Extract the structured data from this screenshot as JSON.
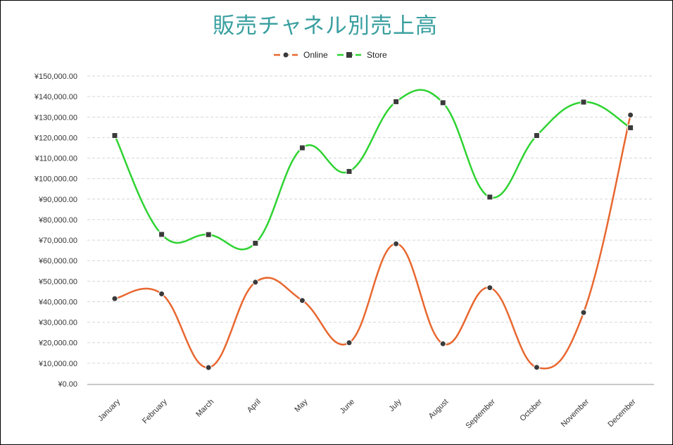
{
  "chart_data": {
    "type": "line",
    "title": "販売チャネル別売上高",
    "xlabel": "",
    "ylabel": "",
    "categories": [
      "January",
      "February",
      "March",
      "April",
      "May",
      "June",
      "July",
      "August",
      "September",
      "October",
      "November",
      "December"
    ],
    "series": [
      {
        "name": "Online",
        "color": "#e8672f",
        "marker": "circle",
        "values": [
          41500,
          43800,
          7900,
          49500,
          40600,
          20000,
          68200,
          19500,
          46800,
          8000,
          34700,
          131000
        ]
      },
      {
        "name": "Store",
        "color": "#2ed331",
        "marker": "square",
        "values": [
          121000,
          72800,
          72700,
          68500,
          115000,
          103500,
          137500,
          137000,
          91000,
          121000,
          137300,
          124800
        ]
      }
    ],
    "ylim": [
      0,
      150000
    ],
    "ytick_labels": [
      "¥0.00",
      "¥10,000.00",
      "¥20,000.00",
      "¥30,000.00",
      "¥40,000.00",
      "¥50,000.00",
      "¥60,000.00",
      "¥70,000.00",
      "¥80,000.00",
      "¥90,000.00",
      "¥100,000.00",
      "¥110,000.00",
      "¥120,000.00",
      "¥130,000.00",
      "¥140,000.00",
      "¥150,000.00"
    ],
    "grid": true,
    "legend_position": "top-center",
    "smooth": true
  }
}
